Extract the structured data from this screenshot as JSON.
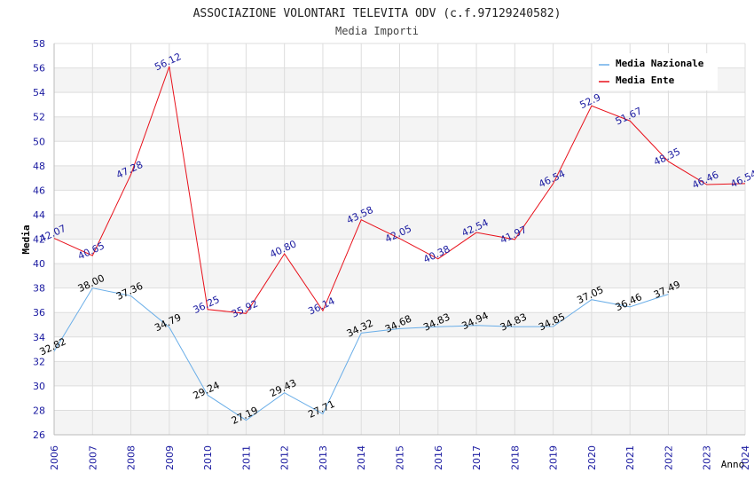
{
  "chart_data": {
    "type": "line",
    "title": "ASSOCIAZIONE VOLONTARI TELEVITA ODV (c.f.97129240582)",
    "subtitle": "Media Importi",
    "ylabel": "Media",
    "xlabel": "Anno",
    "ylim": [
      26,
      58
    ],
    "y_ticks": [
      26,
      28,
      30,
      32,
      34,
      36,
      38,
      40,
      42,
      44,
      46,
      48,
      50,
      52,
      54,
      56,
      58
    ],
    "grid": true,
    "legend_position": "top-right",
    "x": [
      "2006",
      "2007",
      "2008",
      "2009",
      "2010",
      "2011",
      "2012",
      "2013",
      "2014",
      "2015",
      "2016",
      "2017",
      "2018",
      "2019",
      "2020",
      "2021",
      "2022",
      "2023",
      "2024"
    ],
    "series": [
      {
        "name": "Media Nazionale",
        "color": "#6aaee8",
        "label_color": "#000000",
        "values": [
          32.82,
          38.0,
          37.36,
          34.79,
          29.24,
          27.19,
          29.43,
          27.71,
          34.32,
          34.68,
          34.83,
          34.94,
          34.83,
          34.85,
          37.05,
          36.46,
          37.49,
          null,
          null
        ],
        "labels": [
          "32.82",
          "38.00",
          "37.36",
          "34.79",
          "29.24",
          "27.19",
          "29.43",
          "27.71",
          "34.32",
          "34.68",
          "34.83",
          "34.94",
          "34.83",
          "34.85",
          "37.05",
          "36.46",
          "37.49",
          "",
          ""
        ]
      },
      {
        "name": "Media Ente",
        "color": "#e8101a",
        "label_color": "#1a1aa0",
        "values": [
          42.07,
          40.65,
          47.28,
          56.12,
          36.25,
          35.92,
          40.8,
          36.14,
          43.58,
          42.05,
          40.38,
          42.54,
          41.97,
          46.54,
          52.9,
          51.67,
          48.35,
          46.46,
          46.54
        ],
        "labels": [
          "42.07",
          "40.65",
          "47.28",
          "56.12",
          "36.25",
          "35.92",
          "40.80",
          "36.14",
          "43.58",
          "42.05",
          "40.38",
          "42.54",
          "41.97",
          "46.54",
          "52.9",
          "51.67",
          "48.35",
          "46.46",
          "46.54"
        ]
      }
    ]
  }
}
